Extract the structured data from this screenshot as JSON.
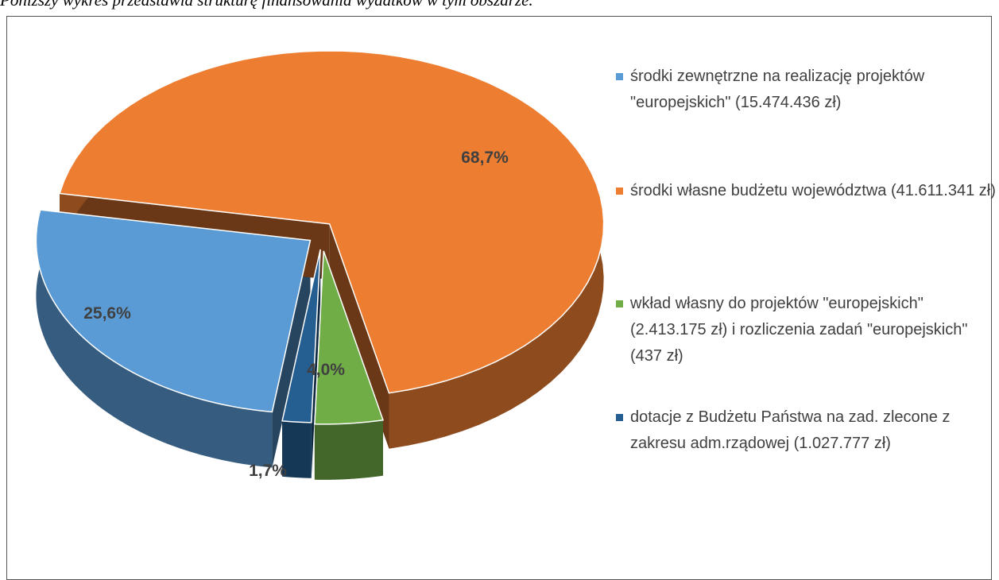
{
  "text_above": "Poniższy wykres przedstawia strukturę finansowania wydatków w tym obszarze.",
  "chart_data": {
    "type": "pie",
    "categories": [
      "środki zewnętrzne na realizację projektów \"europejskich\" (15.474.436 zł)",
      "środki własne budżetu województwa (41.611.341 zł)",
      "wkład własny do projektów \"europejskich\" (2.413.175 zł) i rozliczenia zadań \"europejskich\" (437 zł)",
      "dotacje z Budżetu Państwa na zad. zlecone z zakresu adm.rządowej (1.027.777 zł)"
    ],
    "values": [
      25.6,
      68.7,
      4.0,
      1.7
    ],
    "value_labels": [
      "25,6%",
      "68,7%",
      "4,0%",
      "1,7%"
    ],
    "colors": [
      "#5b9bd5",
      "#ed7d31",
      "#70ad47",
      "#255e91"
    ],
    "legend": "right"
  }
}
